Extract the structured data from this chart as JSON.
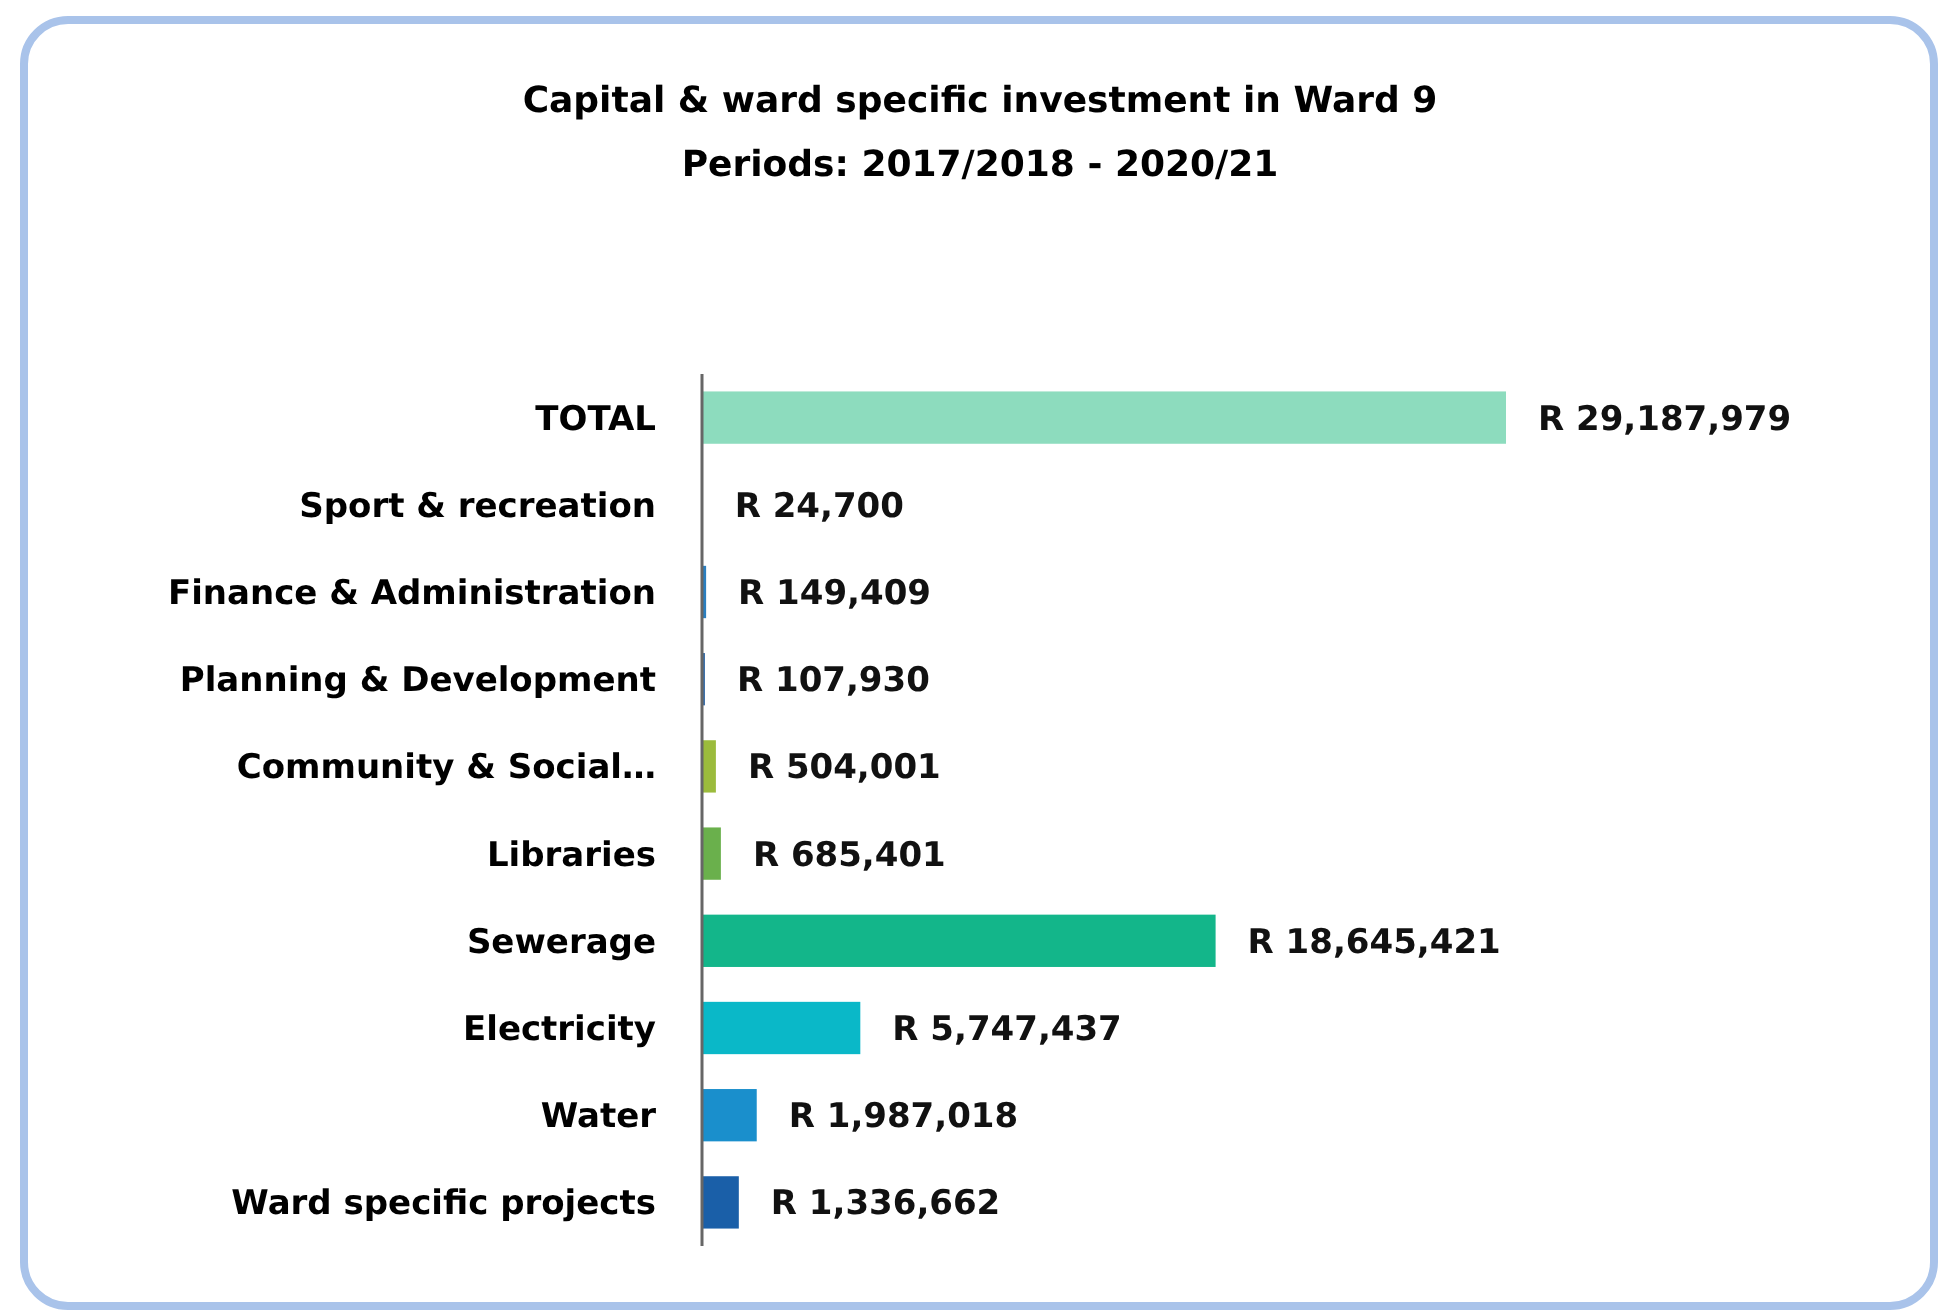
{
  "chart_data": {
    "type": "bar",
    "orientation": "horizontal",
    "title": "Capital & ward specific investment in Ward 9",
    "subtitle": "Periods: 2017/2018 - 2020/21",
    "categories": [
      "TOTAL",
      "Sport & recreation",
      "Finance & Administration",
      "Planning & Development",
      "Community & Social…",
      "Libraries",
      "Sewerage",
      "Electricity",
      "Water",
      "Ward specific projects"
    ],
    "values": [
      29187979,
      24700,
      149409,
      107930,
      504001,
      685401,
      18645421,
      5747437,
      1987018,
      1336662
    ],
    "value_labels": [
      "R 29,187,979",
      "R 24,700",
      "R 149,409",
      "R 107,930",
      "R 504,001",
      "R 685,401",
      "R 18,645,421",
      "R 5,747,437",
      "R 1,987,018",
      "R 1,336,662"
    ],
    "colors": [
      "#8ddcbe",
      "#1e6fb8",
      "#2a7fc0",
      "#3a6ea8",
      "#9bbb3c",
      "#6ab04c",
      "#13b68a",
      "#0ab8c8",
      "#1a8fcc",
      "#1a5fa8"
    ]
  }
}
